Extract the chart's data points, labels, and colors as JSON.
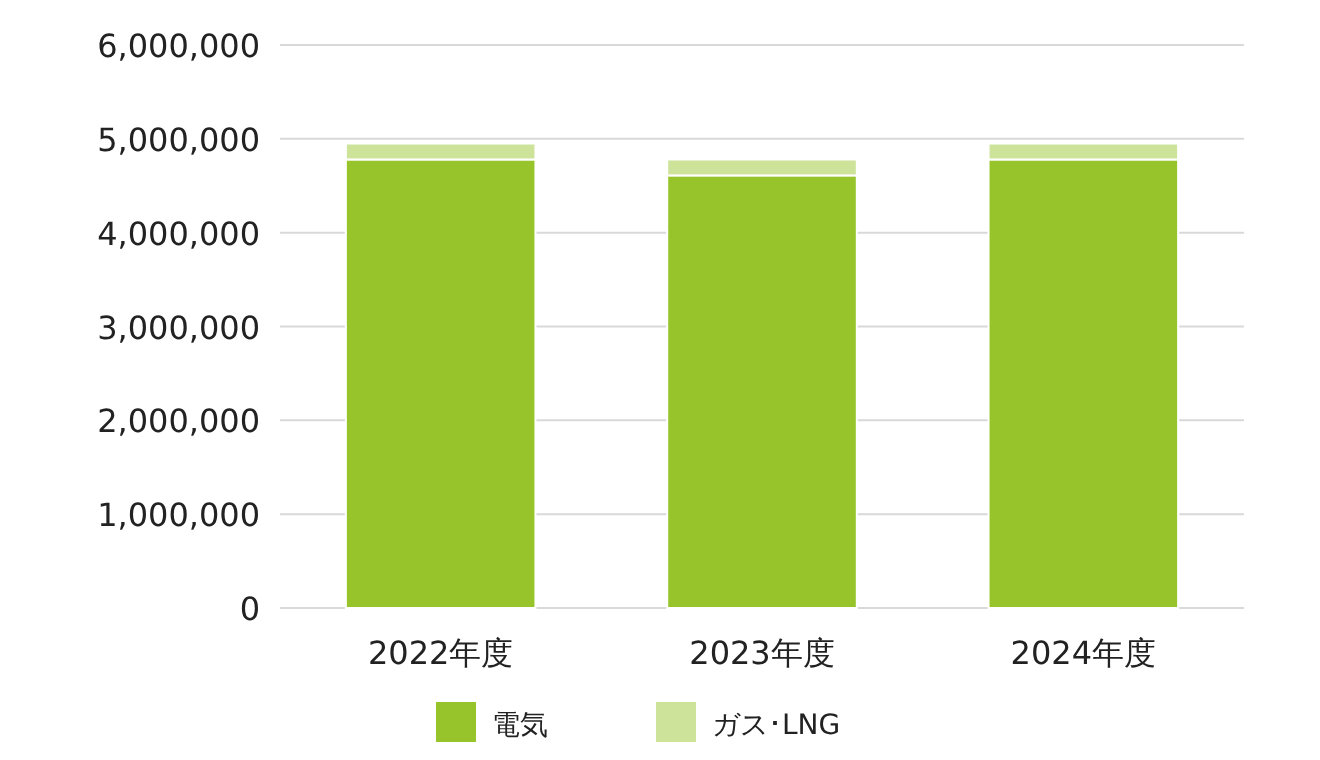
{
  "chart_data": {
    "type": "bar",
    "stacked": true,
    "categories": [
      "2022年度",
      "2023年度",
      "2024年度"
    ],
    "series": [
      {
        "name": "電気",
        "color": "#97c42b",
        "values": [
          4780000,
          4610000,
          4780000
        ]
      },
      {
        "name": "ガス･LNG",
        "color": "#cde399",
        "values": [
          170000,
          170000,
          170000
        ]
      }
    ],
    "ylim": [
      0,
      6000000
    ],
    "yticks": [
      {
        "value": 0,
        "label": "0"
      },
      {
        "value": 1000000,
        "label": "1,000,000"
      },
      {
        "value": 2000000,
        "label": "2,000,000"
      },
      {
        "value": 3000000,
        "label": "3,000,000"
      },
      {
        "value": 4000000,
        "label": "4,000,000"
      },
      {
        "value": 5000000,
        "label": "5,000,000"
      },
      {
        "value": 6000000,
        "label": "6,000,000"
      }
    ],
    "grid": "y",
    "legend": "bottom"
  }
}
